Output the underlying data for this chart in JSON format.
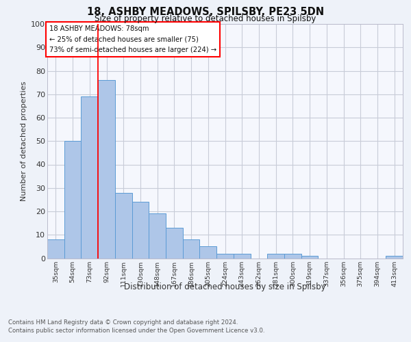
{
  "title_line1": "18, ASHBY MEADOWS, SPILSBY, PE23 5DN",
  "title_line2": "Size of property relative to detached houses in Spilsby",
  "xlabel": "Distribution of detached houses by size in Spilsby",
  "ylabel": "Number of detached properties",
  "categories": [
    "35sqm",
    "54sqm",
    "73sqm",
    "92sqm",
    "111sqm",
    "130sqm",
    "148sqm",
    "167sqm",
    "186sqm",
    "205sqm",
    "224sqm",
    "243sqm",
    "262sqm",
    "281sqm",
    "300sqm",
    "319sqm",
    "337sqm",
    "356sqm",
    "375sqm",
    "394sqm",
    "413sqm"
  ],
  "values": [
    8,
    50,
    69,
    76,
    28,
    24,
    19,
    13,
    8,
    5,
    2,
    2,
    0,
    2,
    2,
    1,
    0,
    0,
    0,
    0,
    1
  ],
  "bar_color": "#aec6e8",
  "bar_edge_color": "#5b9bd5",
  "ylim": [
    0,
    100
  ],
  "yticks": [
    0,
    10,
    20,
    30,
    40,
    50,
    60,
    70,
    80,
    90,
    100
  ],
  "property_label": "18 ASHBY MEADOWS: 78sqm",
  "annotation_line1": "← 25% of detached houses are smaller (75)",
  "annotation_line2": "73% of semi-detached houses are larger (224) →",
  "vline_x_index": 2.5,
  "footer_line1": "Contains HM Land Registry data © Crown copyright and database right 2024.",
  "footer_line2": "Contains public sector information licensed under the Open Government Licence v3.0.",
  "bg_color": "#eef2f9",
  "plot_bg_color": "#f5f7fd",
  "grid_color": "#c8ccd8"
}
